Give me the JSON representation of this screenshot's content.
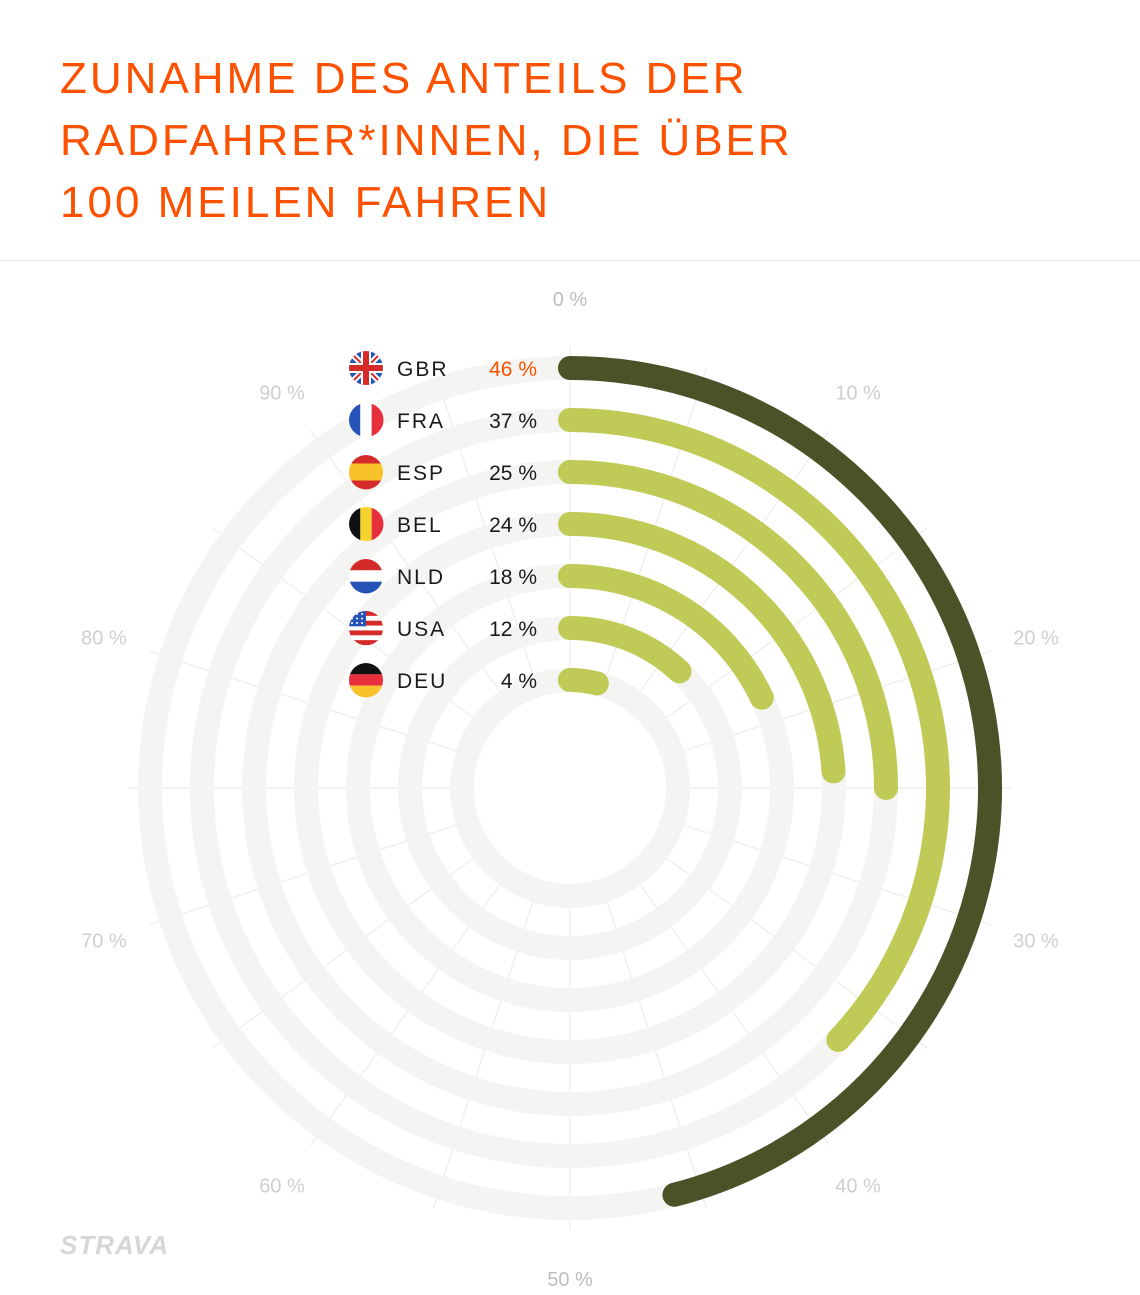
{
  "title_lines": [
    "Zunahme des Anteils der",
    "Radfahrer*innen, die über",
    "100 Meilen fahren"
  ],
  "logo": "STRAVA",
  "colors": {
    "title": "#fc5200",
    "highlight_bar": "#4a5228",
    "bar": "#bfcb56",
    "track": "#f4f4f2",
    "highlight_value": "#fc5200",
    "value": "#1a1a1a",
    "tick": "#cfcfcf"
  },
  "chart_data": {
    "type": "radial-bar",
    "unit": "%",
    "axis_max": 100,
    "ticks": [
      "0 %",
      "10 %",
      "20 %",
      "30 %",
      "40 %",
      "50 %",
      "60 %",
      "70 %",
      "80 %",
      "90 %"
    ],
    "categories": [
      "GBR",
      "FRA",
      "ESP",
      "BEL",
      "NLD",
      "USA",
      "DEU"
    ],
    "values": [
      46,
      37,
      25,
      24,
      18,
      12,
      4
    ],
    "value_labels": [
      "46 %",
      "37 %",
      "25 %",
      "24 %",
      "18 %",
      "12 %",
      "4 %"
    ],
    "flags": [
      "gb-flag-icon",
      "fr-flag-icon",
      "es-flag-icon",
      "be-flag-icon",
      "nl-flag-icon",
      "us-flag-icon",
      "de-flag-icon"
    ],
    "highlight": "GBR"
  }
}
